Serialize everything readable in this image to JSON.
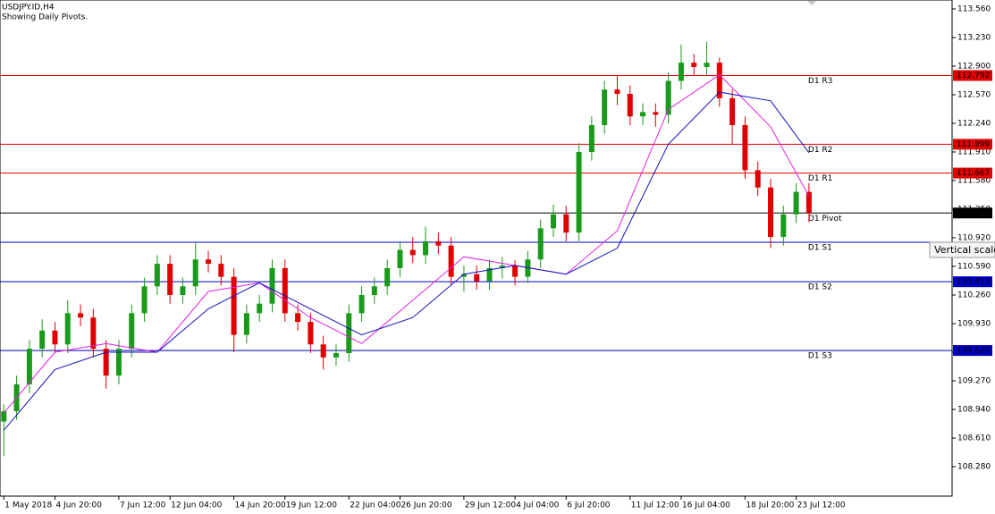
{
  "chart_data": {
    "type": "candlestick",
    "title": "USDJPY.ID,H4",
    "subtitle": "Showing Daily Pivots.",
    "tooltip": "Vertical scale",
    "up_color": "#1a9a1a",
    "down_color": "#e00000",
    "ylim": [
      107.94,
      113.663
    ],
    "yticks": [
      {
        "value": 113.56,
        "label": "113.560"
      },
      {
        "value": 113.23,
        "label": "113.230"
      },
      {
        "value": 112.9,
        "label": "112.900"
      },
      {
        "value": 112.57,
        "label": "112.570"
      },
      {
        "value": 112.24,
        "label": "112.240"
      },
      {
        "value": 111.91,
        "label": "111.910"
      },
      {
        "value": 111.58,
        "label": "111.580"
      },
      {
        "value": 111.25,
        "label": "111.250"
      },
      {
        "value": 110.92,
        "label": "110.920"
      },
      {
        "value": 110.59,
        "label": "110.590"
      },
      {
        "value": 110.26,
        "label": "110.260"
      },
      {
        "value": 109.93,
        "label": "109.930"
      },
      {
        "value": 109.6,
        "label": "109.600"
      },
      {
        "value": 109.27,
        "label": "109.270"
      },
      {
        "value": 108.94,
        "label": "108.940"
      },
      {
        "value": 108.61,
        "label": "108.610"
      },
      {
        "value": 108.28,
        "label": "108.280"
      }
    ],
    "xlim": [
      -0.3,
      74.2
    ],
    "xticks": [
      {
        "value": 0,
        "label": "1 May 2018"
      },
      {
        "value": 4,
        "label": "4 Jun 20:00"
      },
      {
        "value": 9,
        "label": "7 Jun 12:00"
      },
      {
        "value": 13,
        "label": "12 Jun 04:00"
      },
      {
        "value": 18,
        "label": "14 Jun 20:00"
      },
      {
        "value": 22,
        "label": "19 Jun 12:00"
      },
      {
        "value": 27,
        "label": "22 Jun 04:00"
      },
      {
        "value": 31,
        "label": "26 Jun 20:00"
      },
      {
        "value": 36,
        "label": "29 Jun 12:00"
      },
      {
        "value": 40,
        "label": "4 Jul 04:00"
      },
      {
        "value": 44,
        "label": "6 Jul 20:00"
      },
      {
        "value": 49,
        "label": "11 Jul 12:00"
      },
      {
        "value": 53,
        "label": "16 Jul 04:00"
      },
      {
        "value": 58,
        "label": "18 Jul 20:00"
      },
      {
        "value": 62,
        "label": "23 Jul 12:00"
      }
    ],
    "candles": [
      [
        108.8,
        109.0,
        108.4,
        108.92
      ],
      [
        108.92,
        109.33,
        108.82,
        109.23
      ],
      [
        109.23,
        109.74,
        109.13,
        109.64
      ],
      [
        109.64,
        109.98,
        109.54,
        109.85
      ],
      [
        109.85,
        109.95,
        109.59,
        109.69
      ],
      [
        109.69,
        110.2,
        109.59,
        110.05
      ],
      [
        110.05,
        110.15,
        109.9,
        110.0
      ],
      [
        110.0,
        110.1,
        109.54,
        109.64
      ],
      [
        109.64,
        109.74,
        109.18,
        109.33
      ],
      [
        109.33,
        109.74,
        109.23,
        109.64
      ],
      [
        109.64,
        110.15,
        109.54,
        110.05
      ],
      [
        110.05,
        110.46,
        109.95,
        110.36
      ],
      [
        110.36,
        110.72,
        110.26,
        110.62
      ],
      [
        110.62,
        110.72,
        110.16,
        110.26
      ],
      [
        110.26,
        110.46,
        110.16,
        110.36
      ],
      [
        110.36,
        110.87,
        110.26,
        110.67
      ],
      [
        110.67,
        110.77,
        110.52,
        110.62
      ],
      [
        110.62,
        110.72,
        110.37,
        110.47
      ],
      [
        110.47,
        110.57,
        109.6,
        109.8
      ],
      [
        109.8,
        110.15,
        109.7,
        110.05
      ],
      [
        110.05,
        110.26,
        109.95,
        110.16
      ],
      [
        110.16,
        110.67,
        110.06,
        110.57
      ],
      [
        110.57,
        110.67,
        109.95,
        110.05
      ],
      [
        110.05,
        110.15,
        109.85,
        109.95
      ],
      [
        109.95,
        110.05,
        109.59,
        109.69
      ],
      [
        109.69,
        109.79,
        109.4,
        109.54
      ],
      [
        109.54,
        109.69,
        109.44,
        109.59
      ],
      [
        109.59,
        110.15,
        109.49,
        110.05
      ],
      [
        110.05,
        110.36,
        109.95,
        110.26
      ],
      [
        110.26,
        110.46,
        110.16,
        110.36
      ],
      [
        110.36,
        110.67,
        110.26,
        110.57
      ],
      [
        110.57,
        110.88,
        110.47,
        110.78
      ],
      [
        110.78,
        110.93,
        110.63,
        110.72
      ],
      [
        110.72,
        111.05,
        110.62,
        110.88
      ],
      [
        110.88,
        110.98,
        110.73,
        110.83
      ],
      [
        110.83,
        110.93,
        110.37,
        110.47
      ],
      [
        110.47,
        110.6,
        110.3,
        110.5
      ],
      [
        110.5,
        110.6,
        110.32,
        110.42
      ],
      [
        110.42,
        110.67,
        110.32,
        110.57
      ],
      [
        110.57,
        110.7,
        110.45,
        110.6
      ],
      [
        110.6,
        110.66,
        110.37,
        110.47
      ],
      [
        110.47,
        110.77,
        110.4,
        110.67
      ],
      [
        110.67,
        111.13,
        110.57,
        111.03
      ],
      [
        111.03,
        111.3,
        110.93,
        111.19
      ],
      [
        111.19,
        111.29,
        110.88,
        110.98
      ],
      [
        110.98,
        112.01,
        110.88,
        111.91
      ],
      [
        111.91,
        112.32,
        111.81,
        112.22
      ],
      [
        112.22,
        112.73,
        112.12,
        112.63
      ],
      [
        112.63,
        112.8,
        112.45,
        112.58
      ],
      [
        112.58,
        112.68,
        112.22,
        112.32
      ],
      [
        112.32,
        112.47,
        112.22,
        112.37
      ],
      [
        112.37,
        112.47,
        112.2,
        112.34
      ],
      [
        112.34,
        112.83,
        112.24,
        112.73
      ],
      [
        112.73,
        113.15,
        112.63,
        112.94
      ],
      [
        112.94,
        113.04,
        112.79,
        112.89
      ],
      [
        112.89,
        113.18,
        112.8,
        112.94
      ],
      [
        112.94,
        113.0,
        112.43,
        112.53
      ],
      [
        112.53,
        112.63,
        112.0,
        112.22
      ],
      [
        112.22,
        112.32,
        111.6,
        111.7
      ],
      [
        111.7,
        111.8,
        111.4,
        111.5
      ],
      [
        111.5,
        111.6,
        110.8,
        110.93
      ],
      [
        110.93,
        111.29,
        110.83,
        111.19
      ],
      [
        111.19,
        111.55,
        111.09,
        111.45
      ],
      [
        111.45,
        111.55,
        111.1,
        111.21
      ]
    ],
    "series": [
      {
        "color": "#e020e0",
        "x": [
          0,
          4,
          8,
          12,
          16,
          20,
          24,
          28,
          32,
          36,
          40,
          44,
          48,
          52,
          56,
          60,
          63
        ],
        "values": [
          108.9,
          109.6,
          109.7,
          109.6,
          110.3,
          110.4,
          110.0,
          109.7,
          110.2,
          110.7,
          110.6,
          110.5,
          111.0,
          112.4,
          112.8,
          112.2,
          111.4
        ]
      },
      {
        "color": "#1010c0",
        "x": [
          0,
          4,
          8,
          12,
          16,
          20,
          24,
          28,
          32,
          36,
          40,
          44,
          48,
          52,
          56,
          60,
          63
        ],
        "values": [
          108.7,
          109.4,
          109.6,
          109.6,
          110.1,
          110.4,
          110.1,
          109.8,
          110.0,
          110.5,
          110.6,
          110.5,
          110.8,
          112.0,
          112.6,
          112.5,
          111.9
        ]
      }
    ],
    "levels": [
      {
        "name": "D1 R3",
        "value": 112.792,
        "label": "112.792",
        "color": "#e00000"
      },
      {
        "name": "D1 R2",
        "value": 111.999,
        "label": "111.999",
        "color": "#e00000"
      },
      {
        "name": "D1 R1",
        "value": 111.667,
        "label": "111.667",
        "color": "#e00000"
      },
      {
        "name": "D1 Pivot",
        "value": 111.206,
        "label": "111.206",
        "color": "#000000"
      },
      {
        "name": "D1 S1",
        "value": 110.868,
        "color": "#0000c0"
      },
      {
        "name": "D1 S2",
        "value": 110.413,
        "label": "110.413",
        "color": "#0000c0"
      },
      {
        "name": "D1 S3",
        "value": 109.62,
        "label": "109.620",
        "color": "#0000c0"
      }
    ]
  }
}
